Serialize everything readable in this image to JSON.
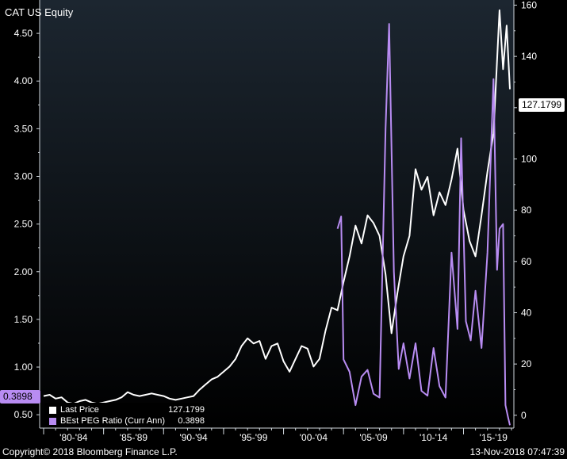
{
  "header": {
    "ticker": "CAT US Equity"
  },
  "footer": {
    "copyright": "Copyright© 2018 Bloomberg Finance L.P.",
    "timestamp": "13-Nov-2018 07:47:39"
  },
  "legend": {
    "items": [
      {
        "label": "Last Price",
        "value": "127.1799"
      },
      {
        "label": "BEst PEG Ratio (Curr Ann)",
        "value": "0.3898"
      }
    ]
  },
  "tags": {
    "right_value": "127.1799",
    "left_value": "0.3898"
  },
  "colors": {
    "background_top": "#1c2630",
    "background_bottom": "#000000",
    "price": "#ffffff",
    "peg": "#b88cf2",
    "grid": "#4a5560"
  },
  "chart_data": {
    "type": "line",
    "title": "CAT US Equity",
    "x_tick_labels": [
      "'80-'84",
      "'85-'89",
      "'90-'94",
      "'95-'99",
      "'00-'04",
      "'05-'09",
      "'10-'14",
      "'15-'19"
    ],
    "x_range": [
      1980,
      2019
    ],
    "left_axis": {
      "ticks": [
        "0.50",
        "1.00",
        "1.50",
        "2.00",
        "2.50",
        "3.00",
        "3.50",
        "4.00",
        "4.50"
      ],
      "range": [
        0.36,
        4.85
      ]
    },
    "right_axis": {
      "ticks": [
        "0",
        "20",
        "40",
        "60",
        "80",
        "100",
        "120",
        "140",
        "160"
      ],
      "range": [
        -5,
        162
      ]
    },
    "grid": false,
    "legend_position": "bottom-left",
    "series": [
      {
        "name": "Last Price",
        "axis": "right",
        "color": "#ffffff",
        "points": [
          [
            1980.0,
            7.5
          ],
          [
            1980.5,
            8.0
          ],
          [
            1981.0,
            6.5
          ],
          [
            1981.5,
            7.0
          ],
          [
            1982.0,
            5.0
          ],
          [
            1982.5,
            4.5
          ],
          [
            1983.0,
            5.5
          ],
          [
            1983.5,
            6.0
          ],
          [
            1984.0,
            5.0
          ],
          [
            1984.5,
            4.5
          ],
          [
            1985.0,
            5.0
          ],
          [
            1985.5,
            5.5
          ],
          [
            1986.0,
            6.0
          ],
          [
            1986.5,
            7.0
          ],
          [
            1987.0,
            9.0
          ],
          [
            1987.5,
            8.0
          ],
          [
            1988.0,
            7.5
          ],
          [
            1988.5,
            8.0
          ],
          [
            1989.0,
            8.5
          ],
          [
            1989.5,
            8.0
          ],
          [
            1990.0,
            7.5
          ],
          [
            1990.5,
            6.5
          ],
          [
            1991.0,
            6.0
          ],
          [
            1991.5,
            6.5
          ],
          [
            1992.0,
            7.0
          ],
          [
            1992.5,
            7.5
          ],
          [
            1993.0,
            10.0
          ],
          [
            1993.5,
            12.0
          ],
          [
            1994.0,
            14.0
          ],
          [
            1994.5,
            15.0
          ],
          [
            1995.0,
            17.0
          ],
          [
            1995.5,
            19.0
          ],
          [
            1996.0,
            22.0
          ],
          [
            1996.5,
            27.0
          ],
          [
            1997.0,
            30.0
          ],
          [
            1997.5,
            28.0
          ],
          [
            1998.0,
            29.0
          ],
          [
            1998.5,
            22.0
          ],
          [
            1999.0,
            27.0
          ],
          [
            1999.5,
            28.0
          ],
          [
            2000.0,
            21.0
          ],
          [
            2000.5,
            17.0
          ],
          [
            2001.0,
            22.0
          ],
          [
            2001.5,
            27.0
          ],
          [
            2002.0,
            26.0
          ],
          [
            2002.5,
            19.0
          ],
          [
            2003.0,
            22.0
          ],
          [
            2003.5,
            33.0
          ],
          [
            2004.0,
            42.0
          ],
          [
            2004.5,
            41.0
          ],
          [
            2005.0,
            52.0
          ],
          [
            2005.5,
            62.0
          ],
          [
            2006.0,
            74.0
          ],
          [
            2006.5,
            67.0
          ],
          [
            2007.0,
            78.0
          ],
          [
            2007.5,
            75.0
          ],
          [
            2008.0,
            70.0
          ],
          [
            2008.5,
            55.0
          ],
          [
            2009.0,
            32.0
          ],
          [
            2009.5,
            48.0
          ],
          [
            2010.0,
            62.0
          ],
          [
            2010.5,
            70.0
          ],
          [
            2011.0,
            96.0
          ],
          [
            2011.5,
            88.0
          ],
          [
            2012.0,
            93.0
          ],
          [
            2012.5,
            78.0
          ],
          [
            2013.0,
            87.0
          ],
          [
            2013.5,
            82.0
          ],
          [
            2014.0,
            92.0
          ],
          [
            2014.5,
            104.0
          ],
          [
            2015.0,
            80.0
          ],
          [
            2015.5,
            68.0
          ],
          [
            2016.0,
            62.0
          ],
          [
            2016.5,
            78.0
          ],
          [
            2017.0,
            95.0
          ],
          [
            2017.5,
            110.0
          ],
          [
            2018.0,
            158.0
          ],
          [
            2018.3,
            135.0
          ],
          [
            2018.6,
            152.0
          ],
          [
            2018.87,
            127.18
          ]
        ]
      },
      {
        "name": "BEst PEG Ratio (Curr Ann)",
        "axis": "left",
        "color": "#b88cf2",
        "points": [
          [
            2004.5,
            2.45
          ],
          [
            2004.8,
            2.58
          ],
          [
            2005.0,
            1.08
          ],
          [
            2005.5,
            0.95
          ],
          [
            2006.0,
            0.6
          ],
          [
            2006.5,
            0.9
          ],
          [
            2007.0,
            0.97
          ],
          [
            2007.5,
            0.72
          ],
          [
            2008.0,
            0.68
          ],
          [
            2008.5,
            3.5
          ],
          [
            2008.8,
            4.6
          ],
          [
            2009.2,
            2.0
          ],
          [
            2009.6,
            0.98
          ],
          [
            2010.0,
            1.25
          ],
          [
            2010.5,
            0.88
          ],
          [
            2011.0,
            1.25
          ],
          [
            2011.5,
            0.75
          ],
          [
            2012.0,
            0.7
          ],
          [
            2012.5,
            1.2
          ],
          [
            2013.0,
            0.8
          ],
          [
            2013.5,
            0.68
          ],
          [
            2014.0,
            2.2
          ],
          [
            2014.5,
            1.4
          ],
          [
            2014.8,
            3.4
          ],
          [
            2015.2,
            1.48
          ],
          [
            2015.6,
            1.28
          ],
          [
            2016.0,
            1.8
          ],
          [
            2016.5,
            1.2
          ],
          [
            2017.0,
            2.2
          ],
          [
            2017.5,
            4.02
          ],
          [
            2017.8,
            2.02
          ],
          [
            2018.0,
            2.45
          ],
          [
            2018.3,
            2.5
          ],
          [
            2018.5,
            0.6
          ],
          [
            2018.7,
            0.48
          ],
          [
            2018.87,
            0.39
          ]
        ]
      }
    ]
  }
}
